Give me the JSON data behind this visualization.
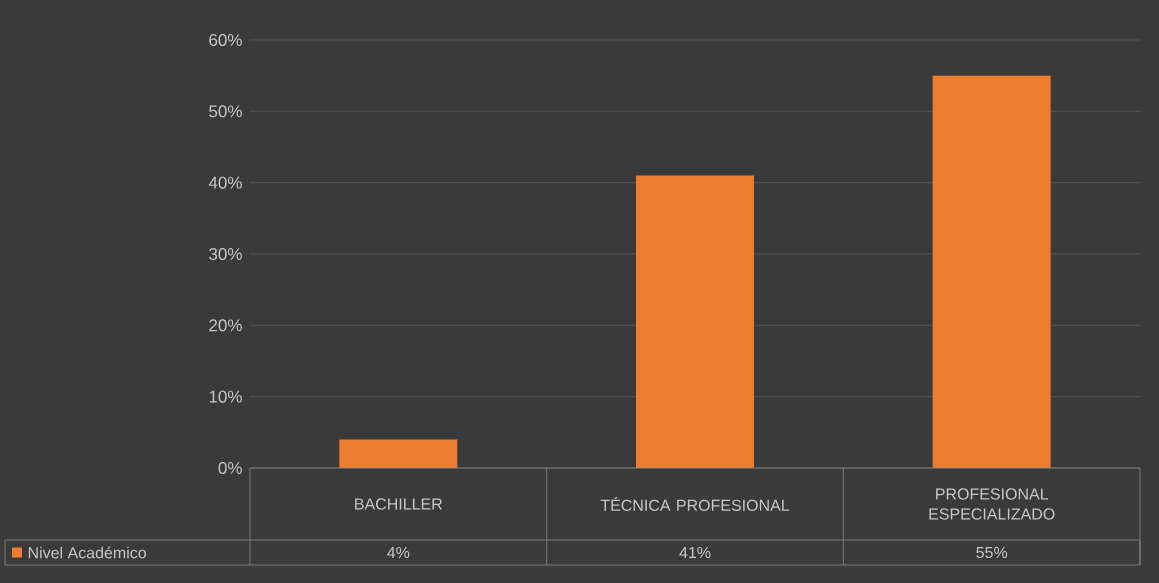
{
  "chart_data": {
    "type": "bar",
    "categories": [
      "BACHILLER",
      "TÉCNICA PROFESIONAL",
      "PROFESIONAL ESPECIALIZADO"
    ],
    "series": [
      {
        "name": "Nivel Académico",
        "color": "#ed7d31",
        "values": [
          4,
          41,
          55
        ],
        "value_labels": [
          "4%",
          "41%",
          "55%"
        ]
      }
    ],
    "ylim": [
      0,
      60
    ],
    "yticks": [
      {
        "value": 0,
        "label": "0%"
      },
      {
        "value": 10,
        "label": "10%"
      },
      {
        "value": 20,
        "label": "20%"
      },
      {
        "value": 30,
        "label": "30%"
      },
      {
        "value": 40,
        "label": "40%"
      },
      {
        "value": 50,
        "label": "50%"
      },
      {
        "value": 60,
        "label": "60%"
      }
    ],
    "grid": "y",
    "legend": "bottom left"
  }
}
